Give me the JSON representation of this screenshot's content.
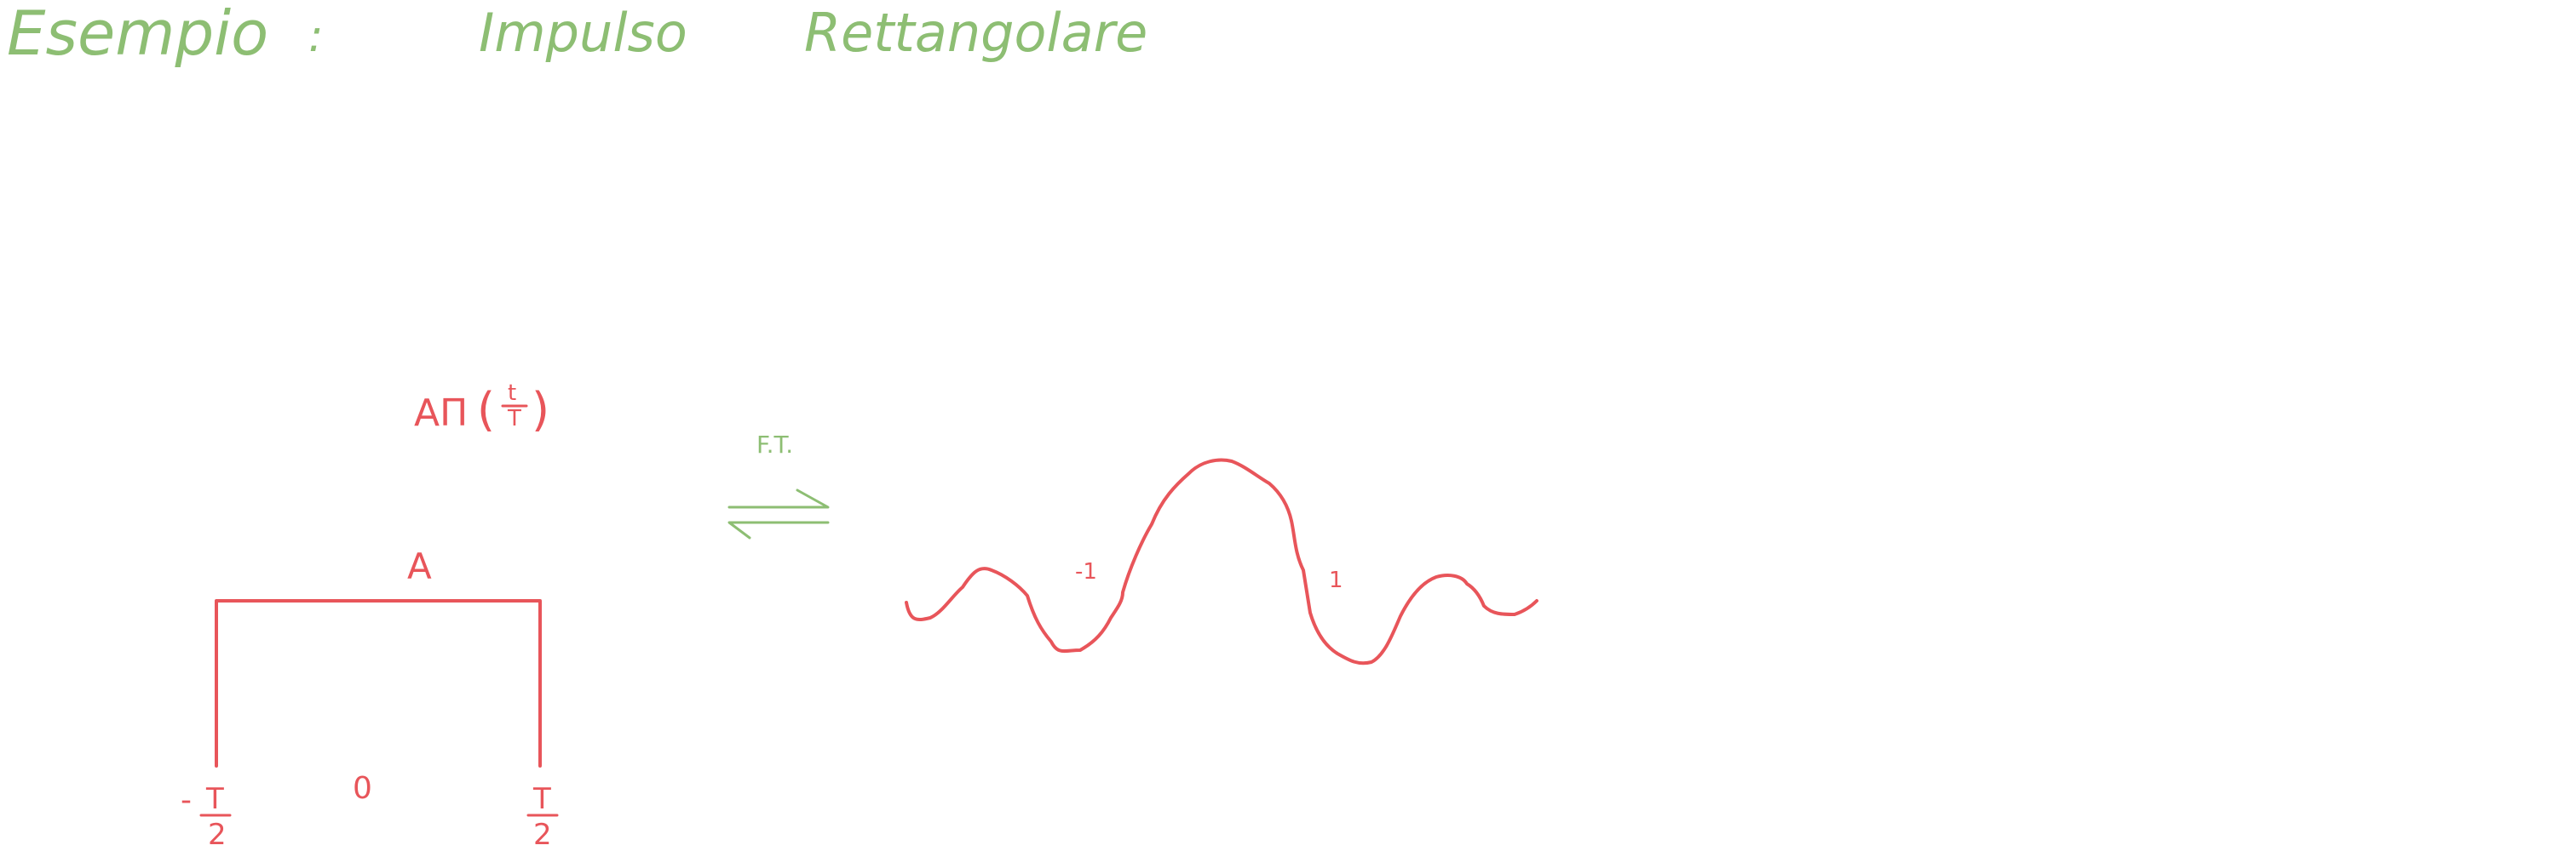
{
  "title": {
    "word1": "Esempio",
    "colon": ":",
    "word2": "Impulso",
    "word3": "Rettangolare"
  },
  "time_signal": {
    "expression_prefix": "AΠ",
    "expression_open": "(",
    "fraction_num": "t",
    "fraction_den": "T",
    "expression_close": ")",
    "amplitude": "A",
    "left_tick_sign": "-",
    "left_tick_num": "T",
    "left_tick_den": "2",
    "origin": "0",
    "right_tick_num": "T",
    "right_tick_den": "2"
  },
  "transform": {
    "label": "F.T."
  },
  "spectrum": {
    "left_tick": "-1",
    "right_tick": "1"
  },
  "colors": {
    "title": "#8dbe73",
    "drawing": "#e8555a"
  }
}
